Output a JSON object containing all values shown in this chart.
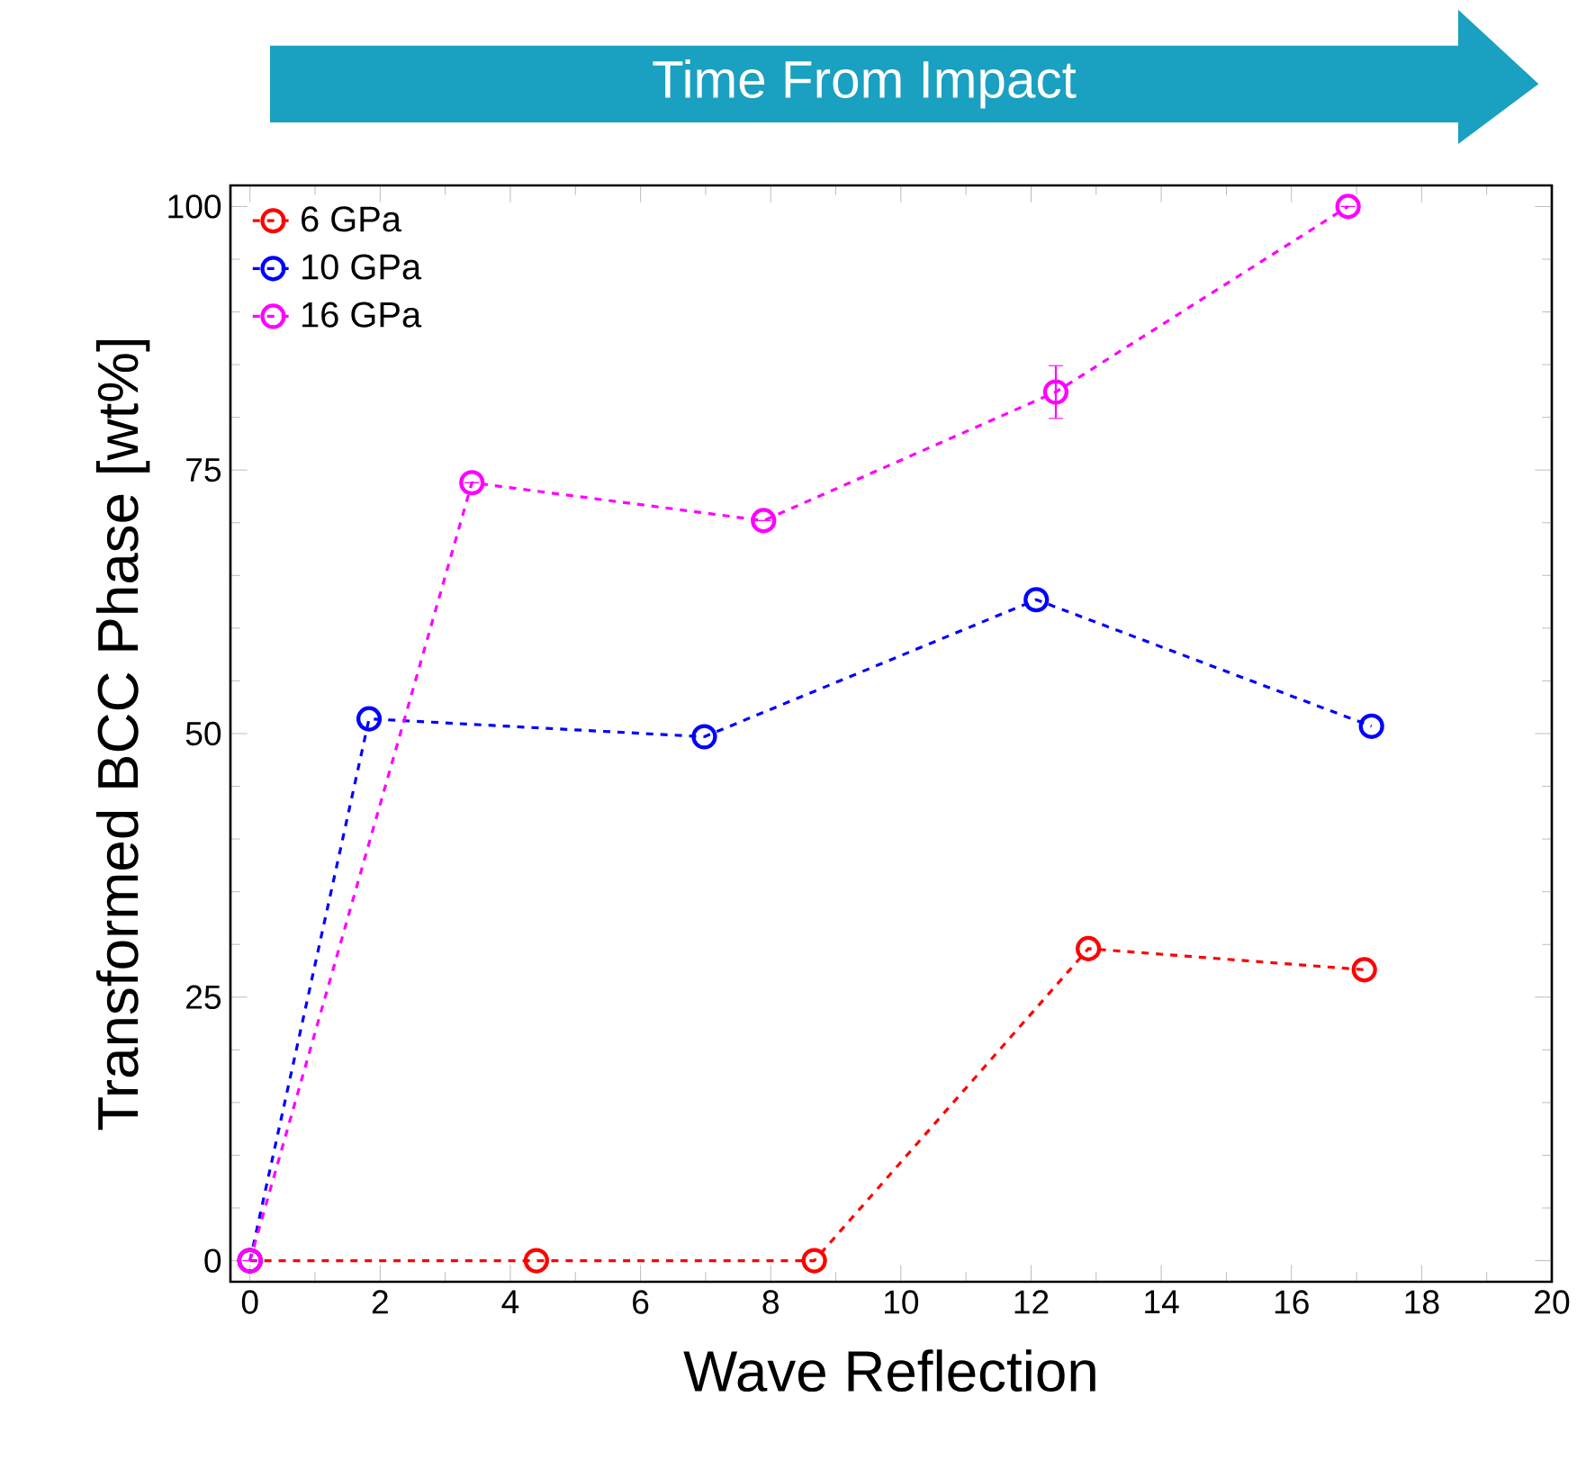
{
  "chart_data": {
    "type": "line",
    "xlabel": "Wave Reflection",
    "ylabel": "Transformed BCC Phase [wt%]",
    "annotations": [
      "Time From Impact"
    ],
    "xlim": [
      -0.3,
      20
    ],
    "ylim": [
      -2,
      102
    ],
    "xticks": [
      0,
      2,
      4,
      6,
      8,
      10,
      12,
      14,
      16,
      18,
      20
    ],
    "yticks": [
      0,
      25,
      50,
      75,
      100
    ],
    "legend": "top left",
    "marker": "circle",
    "line_style": "dashed",
    "series": [
      {
        "name": "6 GPa",
        "color": "#ff0000",
        "x": [
          0,
          4.4,
          8.67,
          12.88,
          17.12
        ],
        "values": [
          0,
          0,
          0,
          29.6,
          27.6
        ]
      },
      {
        "name": "10 GPa",
        "color": "#0000ff",
        "x": [
          0,
          1.83,
          6.98,
          12.08,
          17.23
        ],
        "values": [
          0,
          51.4,
          49.7,
          62.7,
          50.7
        ]
      },
      {
        "name": "16 GPa",
        "color": "#ff00ff",
        "x": [
          0,
          3.41,
          7.89,
          12.38,
          16.87
        ],
        "values": [
          0,
          73.8,
          70.2,
          82.4,
          100
        ],
        "errors": [
          null,
          null,
          null,
          2.5,
          null
        ]
      }
    ]
  }
}
